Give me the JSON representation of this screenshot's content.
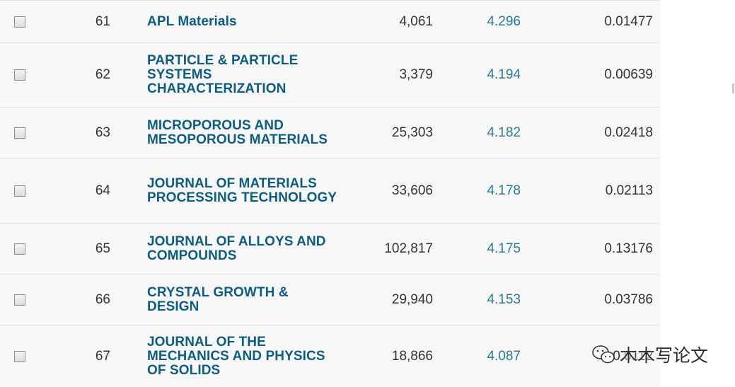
{
  "rows": [
    {
      "rank": "61",
      "title": [
        "APL Materials"
      ],
      "cites": "4,061",
      "impact_factor": "4.296",
      "eigenfactor": "0.01477"
    },
    {
      "rank": "62",
      "title": [
        "PARTICLE & PARTICLE",
        "SYSTEMS",
        "CHARACTERIZATION"
      ],
      "cites": "3,379",
      "impact_factor": "4.194",
      "eigenfactor": "0.00639"
    },
    {
      "rank": "63",
      "title": [
        "MICROPOROUS AND",
        "MESOPOROUS MATERIALS"
      ],
      "cites": "25,303",
      "impact_factor": "4.182",
      "eigenfactor": "0.02418"
    },
    {
      "rank": "64",
      "title": [
        "JOURNAL OF MATERIALS",
        "PROCESSING TECHNOLOGY"
      ],
      "cites": "33,606",
      "impact_factor": "4.178",
      "eigenfactor": "0.02113"
    },
    {
      "rank": "65",
      "title": [
        "JOURNAL OF ALLOYS AND",
        "COMPOUNDS"
      ],
      "cites": "102,817",
      "impact_factor": "4.175",
      "eigenfactor": "0.13176"
    },
    {
      "rank": "66",
      "title": [
        "CRYSTAL GROWTH &",
        "DESIGN"
      ],
      "cites": "29,940",
      "impact_factor": "4.153",
      "eigenfactor": "0.03786"
    },
    {
      "rank": "67",
      "title": [
        "JOURNAL OF THE",
        "MECHANICS AND PHYSICS",
        "OF SOLIDS"
      ],
      "cites": "18,866",
      "impact_factor": "4.087",
      "eigenfactor": "0.0112"
    }
  ],
  "watermark": {
    "text": "木木写论文",
    "icon": "wechat-icon"
  }
}
